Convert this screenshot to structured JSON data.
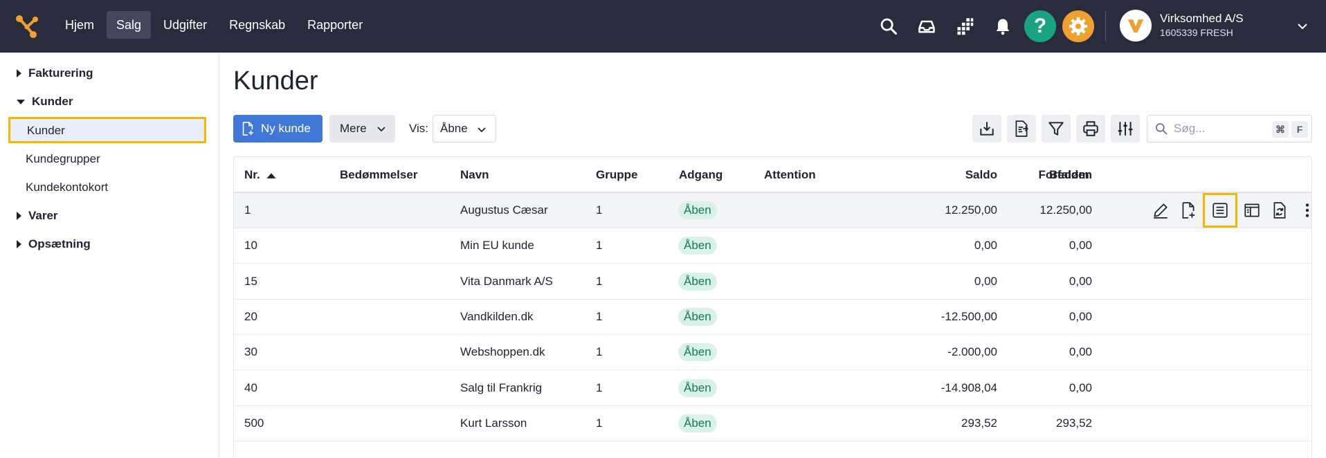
{
  "nav": {
    "items": [
      "Hjem",
      "Salg",
      "Udgifter",
      "Regnskab",
      "Rapporter"
    ],
    "active": "Salg"
  },
  "topbar": {
    "icons": [
      "search-icon",
      "inbox-icon",
      "apps-grid-icon",
      "bell-icon",
      "help-icon",
      "gear-icon"
    ],
    "help_label": "?",
    "account": {
      "name": "Virksomhed A/S",
      "sub": "1605339 FRESH"
    }
  },
  "sidebar": {
    "groups": [
      {
        "label": "Fakturering",
        "expanded": false
      },
      {
        "label": "Kunder",
        "expanded": true,
        "items": [
          "Kunder",
          "Kundegrupper",
          "Kundekontokort"
        ],
        "active": "Kunder"
      },
      {
        "label": "Varer",
        "expanded": false
      },
      {
        "label": "Opsætning",
        "expanded": false
      }
    ]
  },
  "page": {
    "title": "Kunder",
    "new_button": "Ny kunde",
    "more_button": "Mere",
    "show_label": "Vis:",
    "show_value": "Åbne",
    "search_placeholder": "Søg...",
    "shortcut_cmd": "⌘",
    "shortcut_key": "F"
  },
  "table": {
    "columns": [
      "Nr.",
      "Bedømmelser",
      "Navn",
      "Gruppe",
      "Adgang",
      "Attention",
      "Saldo",
      "Forfalden",
      "Bedøm"
    ],
    "rows": [
      {
        "nr": "1",
        "navn": "Augustus Cæsar",
        "gruppe": "1",
        "adgang": "Åben",
        "saldo": "12.250,00",
        "forfalden": "12.250,00"
      },
      {
        "nr": "10",
        "navn": "Min EU kunde",
        "gruppe": "1",
        "adgang": "Åben",
        "saldo": "0,00",
        "forfalden": "0,00"
      },
      {
        "nr": "15",
        "navn": "Vita Danmark A/S",
        "gruppe": "1",
        "adgang": "Åben",
        "saldo": "0,00",
        "forfalden": "0,00"
      },
      {
        "nr": "20",
        "navn": "Vandkilden.dk",
        "gruppe": "1",
        "adgang": "Åben",
        "saldo": "-12.500,00",
        "forfalden": "0,00"
      },
      {
        "nr": "30",
        "navn": "Webshoppen.dk",
        "gruppe": "1",
        "adgang": "Åben",
        "saldo": "-2.000,00",
        "forfalden": "0,00"
      },
      {
        "nr": "40",
        "navn": "Salg til Frankrig",
        "gruppe": "1",
        "adgang": "Åben",
        "saldo": "-14.908,04",
        "forfalden": "0,00"
      },
      {
        "nr": "500",
        "navn": "Kurt Larsson",
        "gruppe": "1",
        "adgang": "Åben",
        "saldo": "293,52",
        "forfalden": "293,52"
      }
    ],
    "row_action_icons": [
      "edit-icon",
      "new-document-icon",
      "statement-icon",
      "layout-icon",
      "convert-document-icon",
      "more-vertical-icon"
    ]
  },
  "colors": {
    "topbar": "#2a2b3d",
    "primary": "#3f78d6",
    "highlight": "#f2b705",
    "badge_bg": "#d9f2e8",
    "badge_text": "#137a5a"
  }
}
